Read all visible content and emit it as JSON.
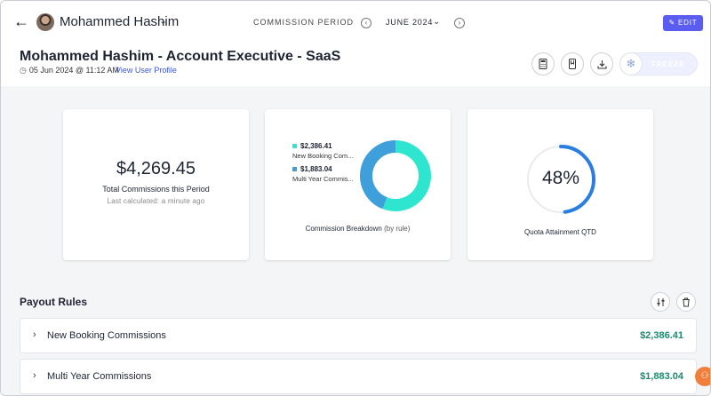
{
  "topbar": {
    "user_name": "Mohammed Hashim",
    "period_label": "COMMISSION PERIOD",
    "period_value": "JUNE 2024",
    "edit_label": "EDIT"
  },
  "header": {
    "title": "Mohammed Hashim - Account Executive - SaaS",
    "timestamp": "05 Jun 2024 @ 11:12 AM",
    "view_profile": "View User Profile",
    "freeze_label": "FREEZE"
  },
  "cards": {
    "total": {
      "amount": "$4,269.45",
      "label": "Total Commissions this Period",
      "sub": "Last calculated: a minute ago"
    },
    "breakdown": {
      "items": [
        {
          "value": "$2,386.41",
          "name": "New Booking Com...",
          "color": "#2ee6d0"
        },
        {
          "value": "$1,883.04",
          "name": "Multi Year Commis...",
          "color": "#3f9fdb"
        }
      ],
      "label": "Commission Breakdown",
      "label_sub": "(by rule)"
    },
    "quota": {
      "value": "48%",
      "fraction": 0.48,
      "label": "Quota Attainment QTD"
    }
  },
  "chart_data": {
    "type": "pie",
    "categories": [
      "New Booking Commissions",
      "Multi Year Commissions"
    ],
    "values": [
      2386.41,
      1883.04
    ],
    "colors": [
      "#2ee6d0",
      "#3f9fdb"
    ]
  },
  "payout": {
    "title": "Payout Rules",
    "rows": [
      {
        "name": "New Booking Commissions",
        "amount": "$2,386.41"
      },
      {
        "name": "Multi Year Commissions",
        "amount": "$1,883.04"
      }
    ]
  },
  "colors": {
    "accent": "#5b5cf0",
    "money": "#1c8a6e",
    "quota_ring": "#2a7de1",
    "help": "#f07f3c"
  }
}
